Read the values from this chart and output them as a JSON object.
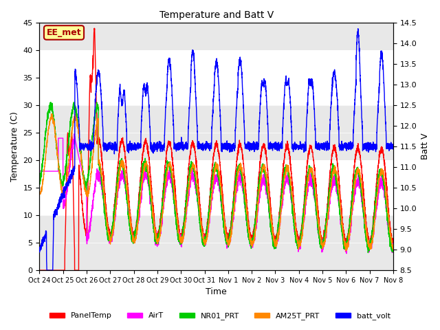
{
  "title": "Temperature and Batt V",
  "xlabel": "Time",
  "ylabel_left": "Temperature (C)",
  "ylabel_right": "Batt V",
  "annotation": "EE_met",
  "ylim_left": [
    0,
    45
  ],
  "ylim_right": [
    8.5,
    14.5
  ],
  "yticks_left": [
    0,
    5,
    10,
    15,
    20,
    25,
    30,
    35,
    40,
    45
  ],
  "yticks_right": [
    8.5,
    9.0,
    9.5,
    10.0,
    10.5,
    11.0,
    11.5,
    12.0,
    12.5,
    13.0,
    13.5,
    14.0,
    14.5
  ],
  "xtick_labels": [
    "Oct 24",
    "Oct 25",
    "Oct 26",
    "Oct 27",
    "Oct 28",
    "Oct 29",
    "Oct 30",
    "Oct 31",
    "Nov 1",
    "Nov 2",
    "Nov 3",
    "Nov 4",
    "Nov 5",
    "Nov 6",
    "Nov 7",
    "Nov 8"
  ],
  "colors": {
    "PanelTemp": "#ff0000",
    "AirT": "#ff00ff",
    "NR01_PRT": "#00cc00",
    "AM25T_PRT": "#ff8800",
    "batt_volt": "#0000ff"
  },
  "legend_labels": [
    "PanelTemp",
    "AirT",
    "NR01_PRT",
    "AM25T_PRT",
    "batt_volt"
  ],
  "background_stripe_color": "#e8e8e8",
  "fig_bg": "#ffffff",
  "annotation_bg": "#ffff99",
  "annotation_border": "#aa0000",
  "annotation_text_color": "#aa0000"
}
